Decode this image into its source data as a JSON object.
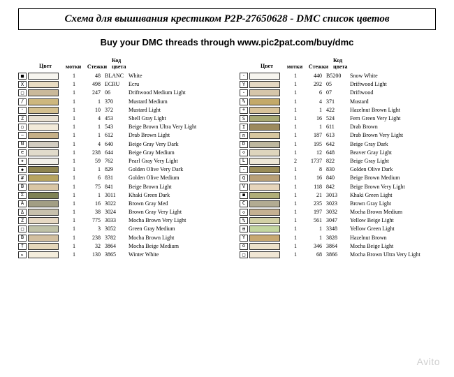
{
  "title": "Схема для вышивания крестиком P2P-27650628 - DMC список цветов",
  "subtitle": "Buy your DMC threads through www.pic2pat.com/buy/dmc",
  "watermark": "Avito",
  "headers": {
    "color": "Цвет",
    "skeins": "мотки",
    "stitches": "Стежки",
    "codeAndName": "Код цвета"
  },
  "left": [
    {
      "sym": "■",
      "swatch": "#f7f5ef",
      "m": "1",
      "s": "48",
      "code": "BLANC",
      "name": "White"
    },
    {
      "sym": "X",
      "swatch": "#e9dcc2",
      "m": "1",
      "s": "498",
      "code": "ECRU",
      "name": "Ecru"
    },
    {
      "sym": "□",
      "swatch": "#cab99a",
      "m": "1",
      "s": "247",
      "code": "06",
      "name": "Driftwood Medium Light"
    },
    {
      "sym": "/",
      "swatch": "#cdb77e",
      "m": "1",
      "s": "1",
      "code": "370",
      "name": "Mustard Medium"
    },
    {
      "sym": "·",
      "swatch": "#d4c08f",
      "m": "1",
      "s": "10",
      "code": "372",
      "name": "Mustard Light"
    },
    {
      "sym": "Z",
      "swatch": "#e8e0d1",
      "m": "1",
      "s": "4",
      "code": "453",
      "name": "Shell Gray Light"
    },
    {
      "sym": "○",
      "swatch": "#f2ead9",
      "m": "1",
      "s": "1",
      "code": "543",
      "name": "Beige Brown Ultra Very Light"
    },
    {
      "sym": "−",
      "swatch": "#c6b087",
      "m": "1",
      "s": "1",
      "code": "612",
      "name": "Drab Brown Light"
    },
    {
      "sym": "N",
      "swatch": "#d3cdc1",
      "m": "1",
      "s": "4",
      "code": "640",
      "name": "Beige Gray Very Dark"
    },
    {
      "sym": "e",
      "swatch": "#e1dbcb",
      "m": "1",
      "s": "238",
      "code": "644",
      "name": "Beige Gray Medium"
    },
    {
      "sym": "★",
      "swatch": "#f1efe9",
      "m": "1",
      "s": "59",
      "code": "762",
      "name": "Pearl Gray Very Light"
    },
    {
      "sym": "◆",
      "swatch": "#8e8450",
      "m": "1",
      "s": "1",
      "code": "829",
      "name": "Golden Olive Very Dark"
    },
    {
      "sym": "#",
      "swatch": "#b7a460",
      "m": "1",
      "s": "6",
      "code": "831",
      "name": "Golden Olive Medium"
    },
    {
      "sym": "B",
      "swatch": "#d9c6a5",
      "m": "1",
      "s": "75",
      "code": "841",
      "name": "Beige Brown Light"
    },
    {
      "sym": "Σ",
      "swatch": "#7f8254",
      "m": "1",
      "s": "1",
      "code": "3011",
      "name": "Khaki Green Dark"
    },
    {
      "sym": "A",
      "swatch": "#a29e84",
      "m": "1",
      "s": "16",
      "code": "3022",
      "name": "Brown Gray Med"
    },
    {
      "sym": "Δ",
      "swatch": "#c8c1ad",
      "m": "1",
      "s": "38",
      "code": "3024",
      "name": "Brown Gray Very Light"
    },
    {
      "sym": "Z",
      "swatch": "#e6d8c3",
      "m": "1",
      "s": "775",
      "code": "3033",
      "name": "Mocha Brown Very Light"
    },
    {
      "sym": "□",
      "swatch": "#bfc1a7",
      "m": "1",
      "s": "3",
      "code": "3052",
      "name": "Green Gray Medium"
    },
    {
      "sym": "B",
      "swatch": "#d2bfa0",
      "m": "1",
      "s": "238",
      "code": "3782",
      "name": "Mocha Brown Light"
    },
    {
      "sym": "†",
      "swatch": "#e5d7bb",
      "m": "1",
      "s": "32",
      "code": "3864",
      "name": "Mocha Beige Medium"
    },
    {
      "sym": "▸",
      "swatch": "#f4eddc",
      "m": "1",
      "s": "130",
      "code": "3865",
      "name": "Winter White"
    }
  ],
  "right": [
    {
      "sym": "·",
      "swatch": "#f7f5ef",
      "m": "1",
      "s": "440",
      "code": "B5200",
      "name": "Snow White"
    },
    {
      "sym": "Y",
      "swatch": "#e4d7c2",
      "m": "1",
      "s": "292",
      "code": "05",
      "name": "Driftwood Light"
    },
    {
      "sym": "·",
      "swatch": "#d6c6aa",
      "m": "1",
      "s": "6",
      "code": "07",
      "name": "Driftwood"
    },
    {
      "sym": "%",
      "swatch": "#c3a969",
      "m": "1",
      "s": "4",
      "code": "371",
      "name": "Mustard"
    },
    {
      "sym": "+",
      "swatch": "#d8c39a",
      "m": "1",
      "s": "1",
      "code": "422",
      "name": "Hazelnut Brown Light"
    },
    {
      "sym": "S",
      "swatch": "#a8a973",
      "m": "1",
      "s": "16",
      "code": "524",
      "name": "Fern Green Very Light"
    },
    {
      "sym": "I",
      "swatch": "#9c8a5d",
      "m": "1",
      "s": "1",
      "code": "611",
      "name": "Drab Brown"
    },
    {
      "sym": "n",
      "swatch": "#d8c79f",
      "m": "1",
      "s": "187",
      "code": "613",
      "name": "Drab Brown Very Light"
    },
    {
      "sym": "D",
      "swatch": "#beb79e",
      "m": "1",
      "s": "195",
      "code": "642",
      "name": "Beige Gray Dark"
    },
    {
      "sym": "◇",
      "swatch": "#ded5bd",
      "m": "1",
      "s": "12",
      "code": "648",
      "name": "Beaver Gray Light"
    },
    {
      "sym": "L",
      "swatch": "#ece6d5",
      "m": "2",
      "s": "1737",
      "code": "822",
      "name": "Beige Gray Light"
    },
    {
      "sym": "·",
      "swatch": "#9a8c58",
      "m": "1",
      "s": "8",
      "code": "830",
      "name": "Golden Olive Dark"
    },
    {
      "sym": "Q",
      "swatch": "#b9a077",
      "m": "1",
      "s": "16",
      "code": "840",
      "name": "Beige Brown Medium"
    },
    {
      "sym": "V",
      "swatch": "#e6d5bb",
      "m": "1",
      "s": "118",
      "code": "842",
      "name": "Beige Brown Very Light"
    },
    {
      "sym": "◼",
      "swatch": "#b0ae78",
      "m": "1",
      "s": "21",
      "code": "3013",
      "name": "Khaki Green Light"
    },
    {
      "sym": "C",
      "swatch": "#b2ab92",
      "m": "1",
      "s": "235",
      "code": "3023",
      "name": "Brown Gray Light"
    },
    {
      "sym": "◇",
      "swatch": "#c5b192",
      "m": "1",
      "s": "197",
      "code": "3032",
      "name": "Mocha Brown Medium"
    },
    {
      "sym": "%",
      "swatch": "#d2d0a6",
      "m": "1",
      "s": "561",
      "code": "3047",
      "name": "Yellow Beige Light"
    },
    {
      "sym": "⊞",
      "swatch": "#c3d6a0",
      "m": "1",
      "s": "1",
      "code": "3348",
      "name": "Yellow Green Light"
    },
    {
      "sym": "Y",
      "swatch": "#c7a871",
      "m": "1",
      "s": "1",
      "code": "3828",
      "name": "Hazelnut Brown"
    },
    {
      "sym": "o",
      "swatch": "#ece1ca",
      "m": "1",
      "s": "346",
      "code": "3864",
      "name": "Mocha Beige Light"
    },
    {
      "sym": "□",
      "swatch": "#f0e6d4",
      "m": "1",
      "s": "68",
      "code": "3866",
      "name": "Mocha Brown Ultra Very Light"
    }
  ]
}
